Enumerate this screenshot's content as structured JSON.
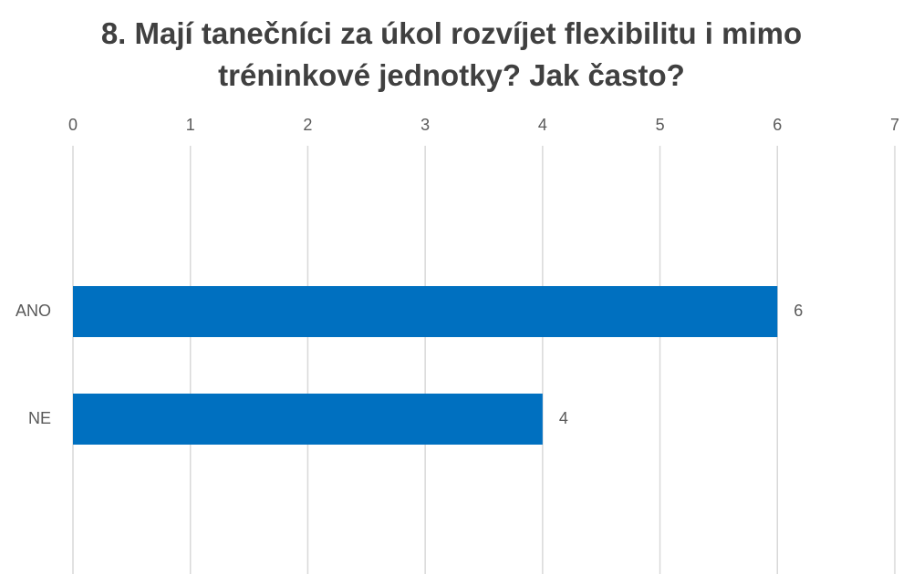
{
  "chart_data": {
    "type": "bar",
    "orientation": "horizontal",
    "title": "8. Mají tanečníci za úkol rozvíjet flexibilitu i mimo tréninkové jednotky? Jak často?",
    "categories": [
      "ANO",
      "NE"
    ],
    "values": [
      6,
      4
    ],
    "color": "#0070c0",
    "xlim": [
      0,
      7
    ],
    "xticks": [
      0,
      1,
      2,
      3,
      4,
      5,
      6,
      7
    ],
    "grid": true
  }
}
